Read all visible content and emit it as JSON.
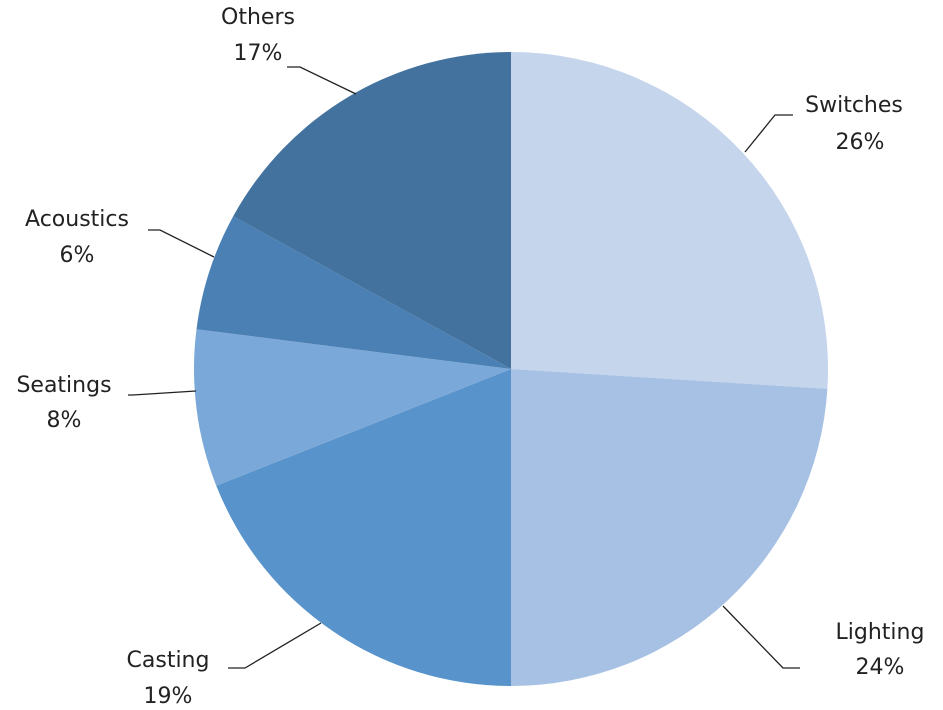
{
  "chart_data": {
    "type": "pie",
    "categories": [
      "Switches",
      "Lighting",
      "Casting",
      "Seatings",
      "Acoustics",
      "Others"
    ],
    "values": [
      26,
      24,
      19,
      8,
      6,
      17
    ],
    "value_labels": [
      "26%",
      "24%",
      "19%",
      "8%",
      "6%",
      "17%"
    ],
    "colors": [
      "#c5d5ec",
      "#a6c1e4",
      "#5894cb",
      "#7aa8d9",
      "#4a80b4",
      "#44729f"
    ]
  }
}
